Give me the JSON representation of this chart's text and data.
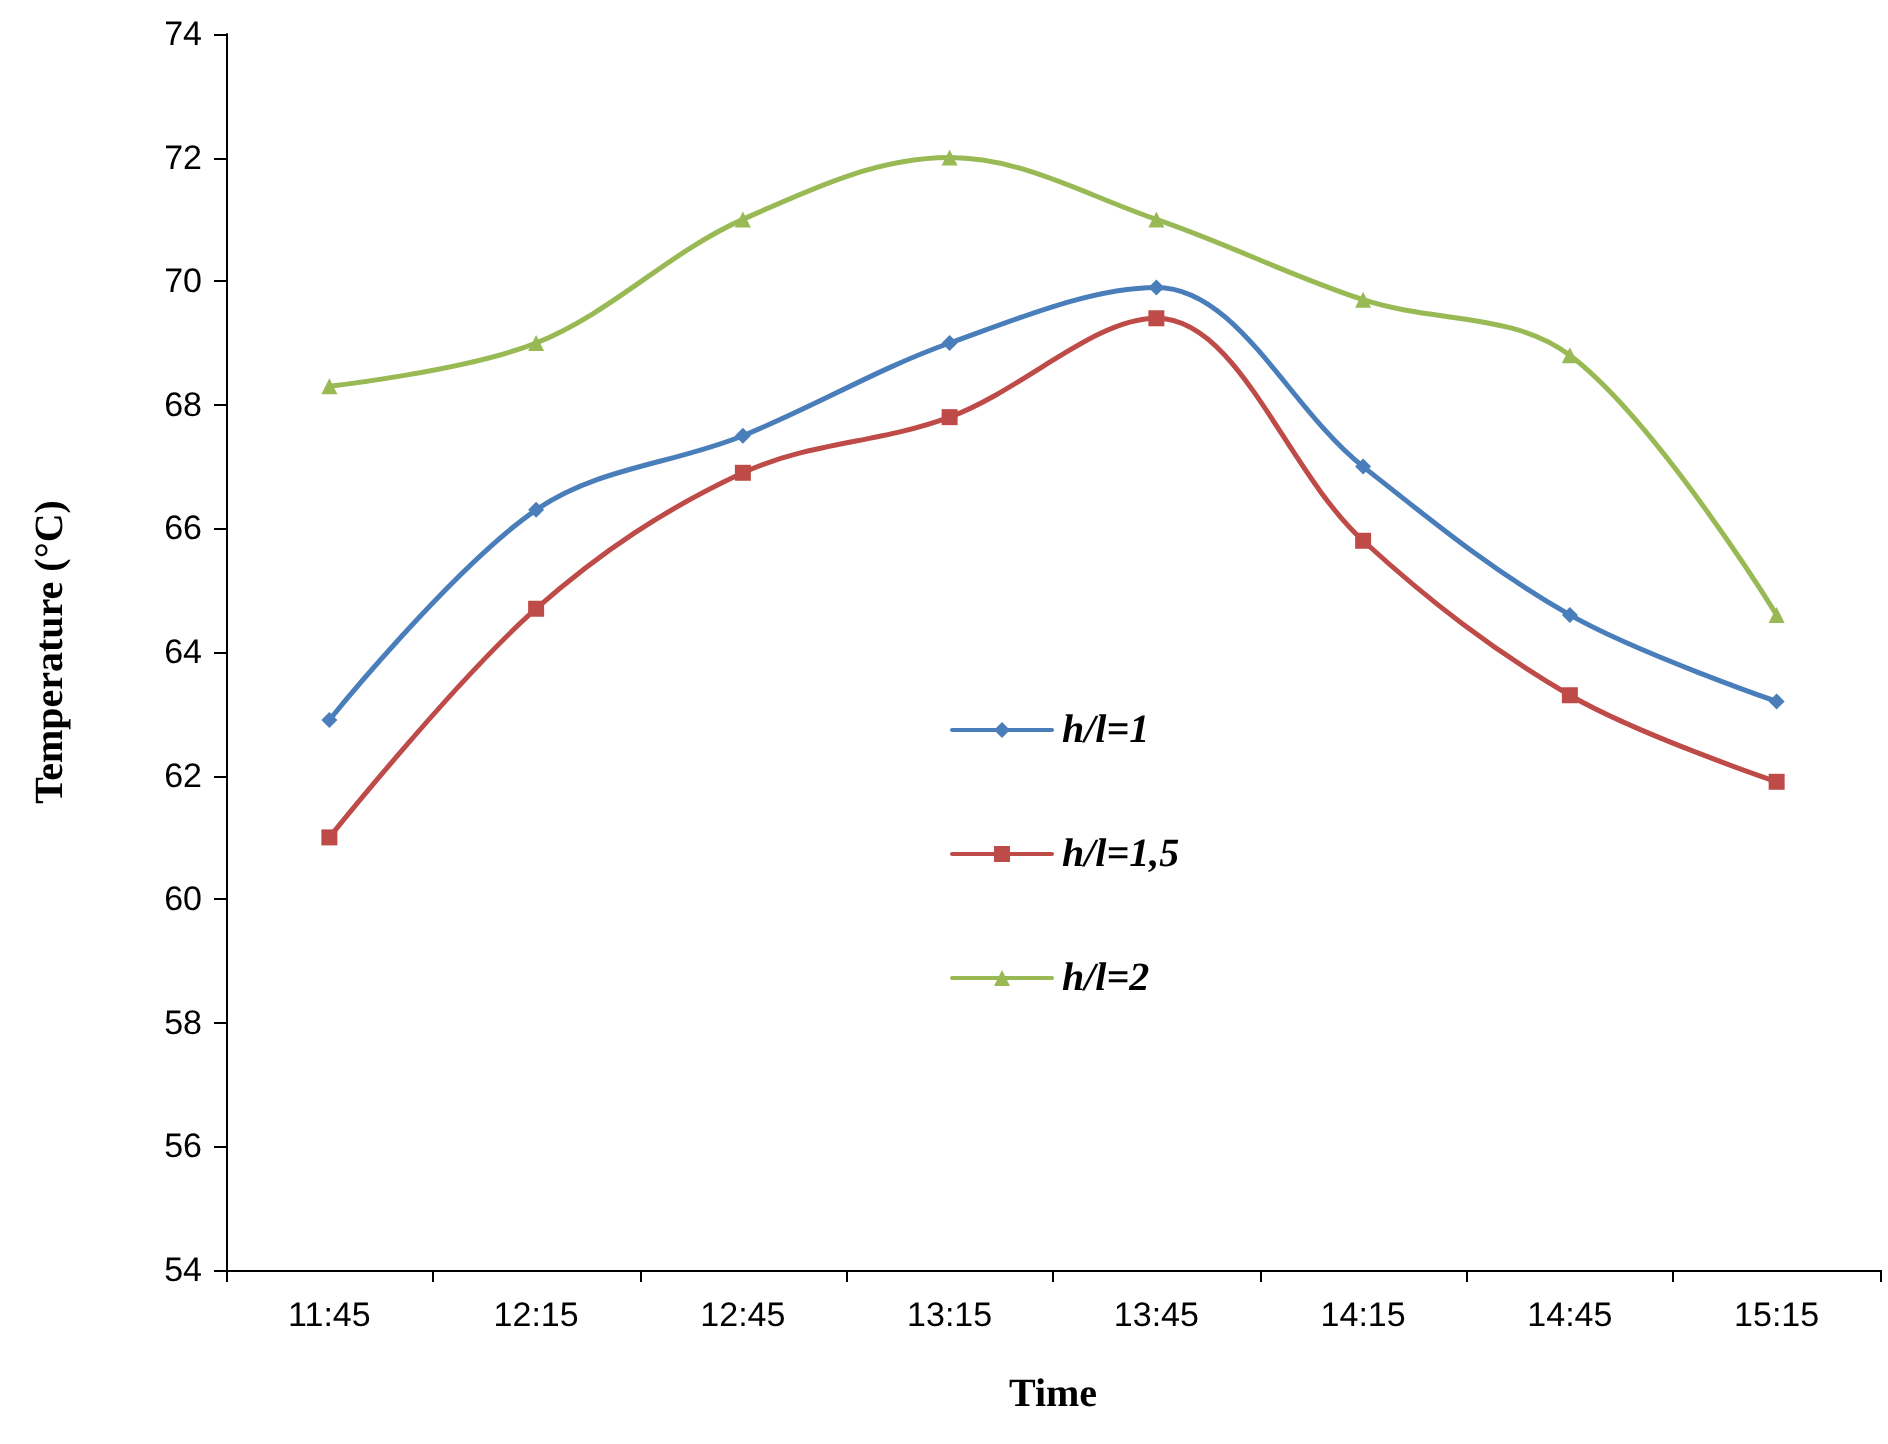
{
  "chart_data": {
    "type": "line",
    "xlabel": "Time",
    "ylabel": "Temperature (°C)",
    "categories": [
      "11:45",
      "12:15",
      "12:45",
      "13:15",
      "13:45",
      "14:15",
      "14:45",
      "15:15"
    ],
    "series": [
      {
        "name": "h/l=1",
        "color": "#4a7ebb",
        "marker": "diamond",
        "values": [
          62.9,
          66.3,
          67.5,
          69.0,
          69.9,
          67.0,
          64.6,
          63.2
        ]
      },
      {
        "name": "h/l=1,5",
        "color": "#be4b48",
        "marker": "square",
        "values": [
          61.0,
          64.7,
          66.9,
          67.8,
          69.4,
          65.8,
          63.3,
          61.9
        ]
      },
      {
        "name": "h/l=2",
        "color": "#98b954",
        "marker": "triangle",
        "values": [
          68.3,
          69.0,
          71.0,
          72.0,
          71.0,
          69.7,
          68.8,
          64.6
        ]
      }
    ],
    "ylim": [
      54,
      74
    ],
    "yticks": [
      54,
      56,
      58,
      60,
      62,
      64,
      66,
      68,
      70,
      72,
      74
    ],
    "grid": false,
    "legend": "center",
    "line_style": "solid"
  }
}
